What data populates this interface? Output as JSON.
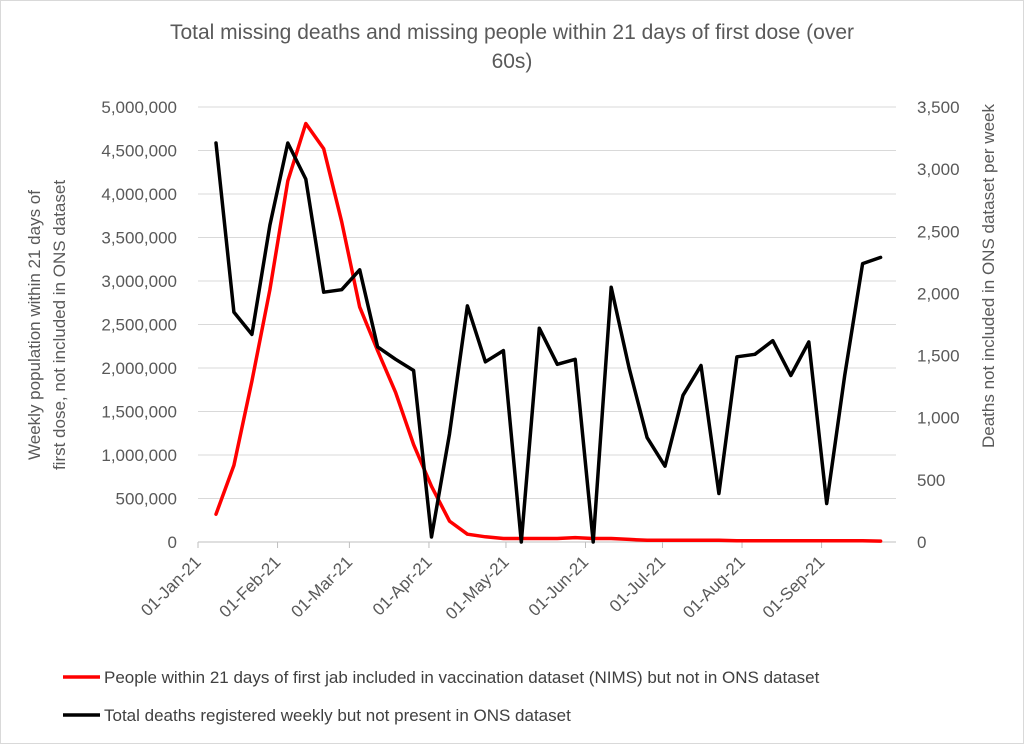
{
  "chart_data": {
    "type": "line",
    "title": "Total missing deaths and missing people within 21 days of first dose (over 60s)",
    "title_lines": [
      "Total missing deaths and missing people within 21 days of first dose (over",
      "60s)"
    ],
    "ylabel_left_lines": [
      "Weekly population within 21 days of",
      "first dose, not included in ONS dataset"
    ],
    "ylabel_right": "Deaths not included in ONS dataset per week",
    "x_dates": [
      "2021-01-08",
      "2021-01-15",
      "2021-01-22",
      "2021-01-29",
      "2021-02-05",
      "2021-02-12",
      "2021-02-19",
      "2021-02-26",
      "2021-03-05",
      "2021-03-12",
      "2021-03-19",
      "2021-03-26",
      "2021-04-02",
      "2021-04-09",
      "2021-04-16",
      "2021-04-23",
      "2021-04-30",
      "2021-05-07",
      "2021-05-14",
      "2021-05-21",
      "2021-05-28",
      "2021-06-04",
      "2021-06-11",
      "2021-06-18",
      "2021-06-25",
      "2021-07-02",
      "2021-07-09",
      "2021-07-16",
      "2021-07-23",
      "2021-07-30",
      "2021-08-06",
      "2021-08-13",
      "2021-08-20",
      "2021-08-27",
      "2021-09-03",
      "2021-09-10",
      "2021-09-17",
      "2021-09-24"
    ],
    "x_ticks": [
      "01-Jan-21",
      "01-Feb-21",
      "01-Mar-21",
      "01-Apr-21",
      "01-May-21",
      "01-Jun-21",
      "01-Jul-21",
      "01-Aug-21",
      "01-Sep-21"
    ],
    "x_tick_dates": [
      "2021-01-01",
      "2021-02-01",
      "2021-03-01",
      "2021-04-01",
      "2021-05-01",
      "2021-06-01",
      "2021-07-01",
      "2021-08-01",
      "2021-09-01"
    ],
    "x_range": [
      "2021-01-01",
      "2021-09-30"
    ],
    "ylim_left": [
      0,
      5000000
    ],
    "ylim_right": [
      0,
      3500
    ],
    "yticks_left": [
      "0",
      "500,000",
      "1,000,000",
      "1,500,000",
      "2,000,000",
      "2,500,000",
      "3,000,000",
      "3,500,000",
      "4,000,000",
      "4,500,000",
      "5,000,000"
    ],
    "yticks_right": [
      "0",
      "500",
      "1,000",
      "1,500",
      "2,000",
      "2,500",
      "3,000",
      "3,500"
    ],
    "grid": true,
    "legend_position": "bottom",
    "series": [
      {
        "name": "People within 21 days of first jab included in vaccination dataset (NIMS) but not in ONS dataset",
        "axis": "left",
        "color": "#ff0000",
        "values": [
          320000,
          880000,
          1850000,
          2900000,
          4150000,
          4810000,
          4520000,
          3680000,
          2700000,
          2200000,
          1720000,
          1120000,
          640000,
          240000,
          90000,
          60000,
          40000,
          40000,
          40000,
          40000,
          50000,
          40000,
          40000,
          30000,
          20000,
          20000,
          20000,
          20000,
          20000,
          15000,
          15000,
          15000,
          15000,
          15000,
          15000,
          15000,
          15000,
          10000
        ]
      },
      {
        "name": "Total deaths registered weekly but not present in ONS dataset",
        "axis": "right",
        "color": "#000000",
        "values": [
          3210,
          1850,
          1670,
          2550,
          3210,
          2920,
          2010,
          2030,
          2190,
          1570,
          1470,
          1380,
          40,
          870,
          1900,
          1450,
          1540,
          0,
          1720,
          1430,
          1470,
          0,
          2050,
          1400,
          840,
          610,
          1180,
          1420,
          390,
          1490,
          1510,
          1620,
          1340,
          1610,
          310,
          1340,
          2240,
          2290
        ]
      }
    ]
  }
}
